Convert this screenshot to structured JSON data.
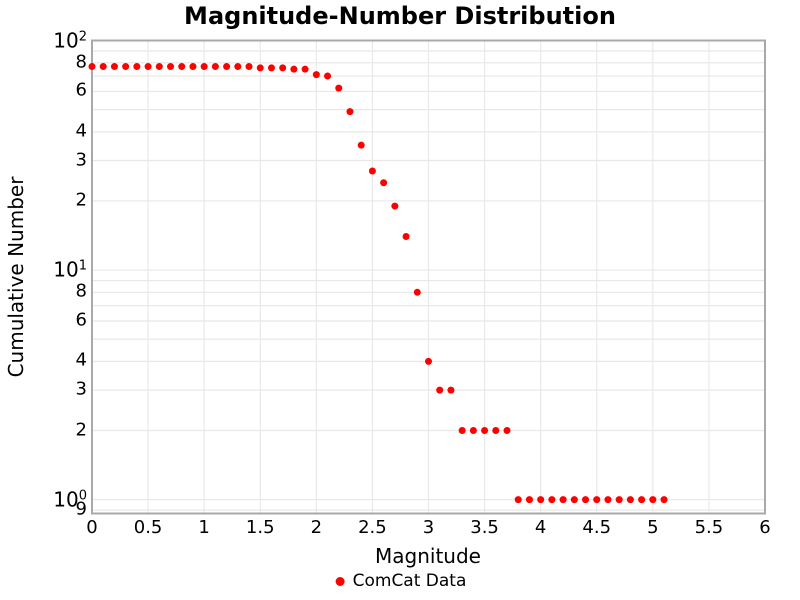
{
  "colors": {
    "marker": "#ff0000",
    "grid": "#e8e8e8",
    "axis_border": "#a9a9a9",
    "text": "#000000",
    "background": "#ffffff"
  },
  "chart_data": {
    "type": "scatter",
    "title": "Magnitude-Number Distribution",
    "xlabel": "Magnitude",
    "ylabel": "Cumulative Number",
    "y_scale": "log",
    "grid": true,
    "xlim": [
      0,
      6
    ],
    "ylim": [
      0.87,
      100
    ],
    "x_ticks": [
      0,
      0.5,
      1,
      1.5,
      2,
      2.5,
      3,
      3.5,
      4,
      4.5,
      5,
      5.5,
      6
    ],
    "x_tick_labels": [
      "0",
      "0.5",
      "1",
      "1.5",
      "2",
      "2.5",
      "3",
      "3.5",
      "4",
      "4.5",
      "5",
      "5.5",
      "6"
    ],
    "y_ticks": [
      {
        "value": 100,
        "base": "10",
        "exp": "2"
      },
      {
        "value": 80,
        "label": "8"
      },
      {
        "value": 60,
        "label": "6"
      },
      {
        "value": 40,
        "label": "4"
      },
      {
        "value": 30,
        "label": "3"
      },
      {
        "value": 20,
        "label": "2"
      },
      {
        "value": 10,
        "base": "10",
        "exp": "1"
      },
      {
        "value": 8,
        "label": "8"
      },
      {
        "value": 6,
        "label": "6"
      },
      {
        "value": 4,
        "label": "4"
      },
      {
        "value": 3,
        "label": "3"
      },
      {
        "value": 2,
        "label": "2"
      },
      {
        "value": 1,
        "base": "10",
        "exp": "0"
      },
      {
        "value": 0.9,
        "label": "9"
      }
    ],
    "grid_y_values": [
      0.9,
      1,
      2,
      3,
      4,
      5,
      6,
      7,
      8,
      9,
      10,
      20,
      30,
      40,
      50,
      60,
      70,
      80,
      90,
      100
    ],
    "legend": {
      "position": "bottom-center"
    },
    "series": [
      {
        "name": "ComCat Data",
        "color": "#ff0000",
        "marker": "circle",
        "x": [
          0.0,
          0.1,
          0.2,
          0.3,
          0.4,
          0.5,
          0.6,
          0.7,
          0.8,
          0.9,
          1.0,
          1.1,
          1.2,
          1.3,
          1.4,
          1.5,
          1.6,
          1.7,
          1.8,
          1.9,
          2.0,
          2.1,
          2.2,
          2.3,
          2.4,
          2.5,
          2.6,
          2.7,
          2.8,
          2.9,
          3.0,
          3.1,
          3.2,
          3.3,
          3.4,
          3.5,
          3.6,
          3.7,
          3.8,
          3.9,
          4.0,
          4.1,
          4.2,
          4.3,
          4.4,
          4.5,
          4.6,
          4.7,
          4.8,
          4.9,
          5.0,
          5.1
        ],
        "y": [
          77,
          77,
          77,
          77,
          77,
          77,
          77,
          77,
          77,
          77,
          77,
          77,
          77,
          77,
          77,
          76,
          76,
          76,
          75,
          75,
          71,
          70,
          62,
          49,
          35,
          27,
          24,
          19,
          14,
          8,
          4,
          3,
          3,
          2,
          2,
          2,
          2,
          2,
          1,
          1,
          1,
          1,
          1,
          1,
          1,
          1,
          1,
          1,
          1,
          1,
          1,
          1
        ]
      }
    ]
  }
}
